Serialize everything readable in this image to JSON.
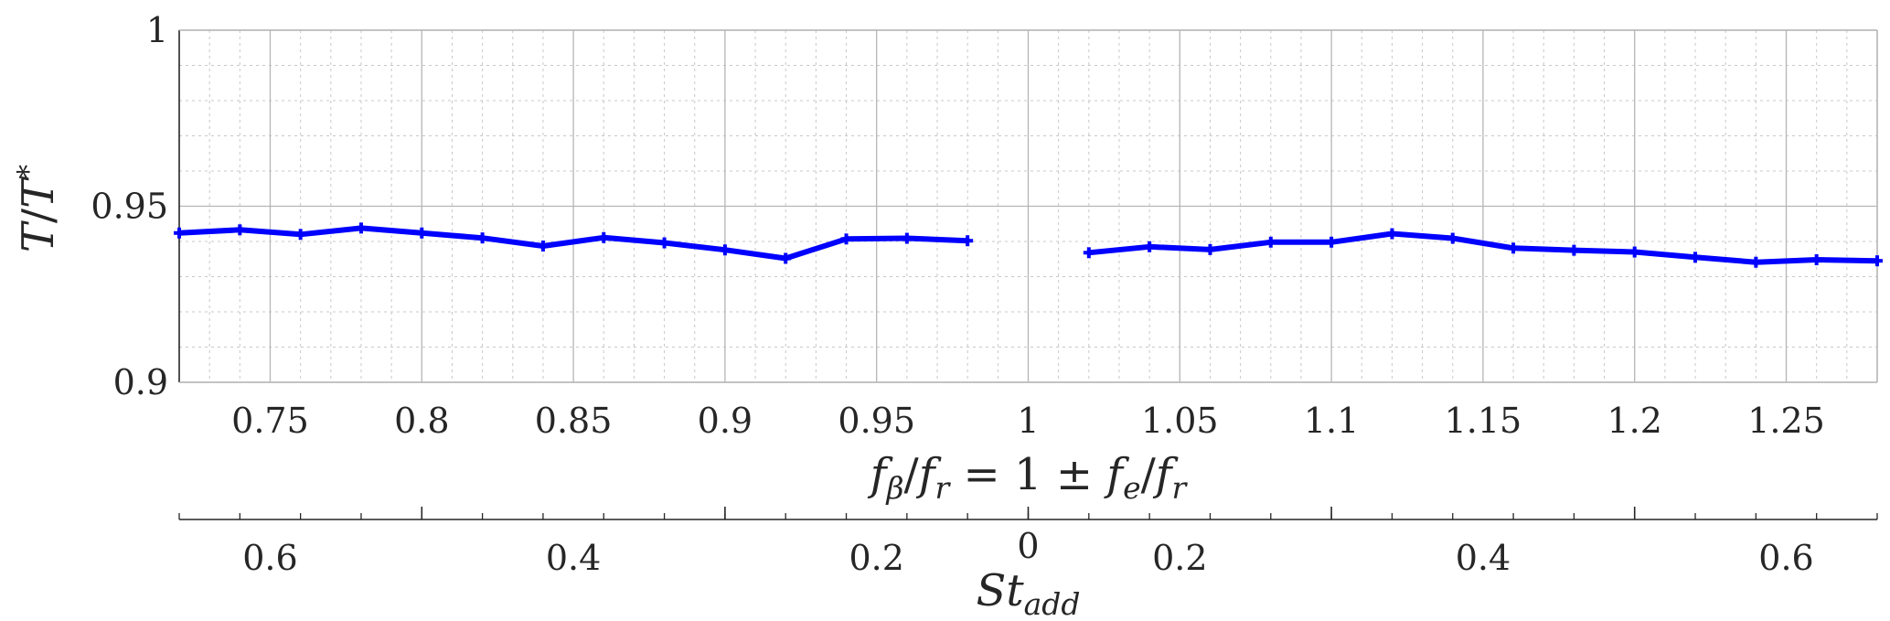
{
  "chart_data": {
    "type": "line",
    "ylabel": "T/T*",
    "xlabel": "f_β/f_r = 1 ± f_e/f_r",
    "x2label": "St_add",
    "xlim": [
      0.72,
      1.28
    ],
    "ylim": [
      0.9,
      1.0
    ],
    "grid": true,
    "x_ticks": [
      "0.75",
      "0.8",
      "0.85",
      "0.9",
      "0.95",
      "1",
      "1.05",
      "1.1",
      "1.15",
      "1.2",
      "1.25"
    ],
    "y_ticks": [
      "0.9",
      "0.95",
      "1"
    ],
    "x2_ticks": [
      "0.6",
      "0.4",
      "0.2",
      "0",
      "0.2",
      "0.4",
      "0.6"
    ],
    "color": "#0000ff",
    "series": [
      {
        "x": [
          0.72,
          0.74,
          0.76,
          0.78,
          0.8,
          0.82,
          0.84,
          0.86,
          0.88,
          0.9,
          0.92,
          0.94,
          0.96,
          0.98
        ],
        "y": [
          0.9424,
          0.9433,
          0.942,
          0.9438,
          0.9424,
          0.941,
          0.9387,
          0.9411,
          0.9396,
          0.9376,
          0.9352,
          0.9407,
          0.9409,
          0.9402
        ]
      },
      {
        "x": [
          1.02,
          1.04,
          1.06,
          1.08,
          1.1,
          1.12,
          1.14,
          1.16,
          1.18,
          1.2,
          1.22,
          1.24,
          1.26,
          1.28
        ],
        "y": [
          0.9368,
          0.9385,
          0.9377,
          0.9398,
          0.9398,
          0.9422,
          0.9409,
          0.9381,
          0.9375,
          0.937,
          0.9355,
          0.9341,
          0.9348,
          0.9345
        ]
      }
    ]
  }
}
